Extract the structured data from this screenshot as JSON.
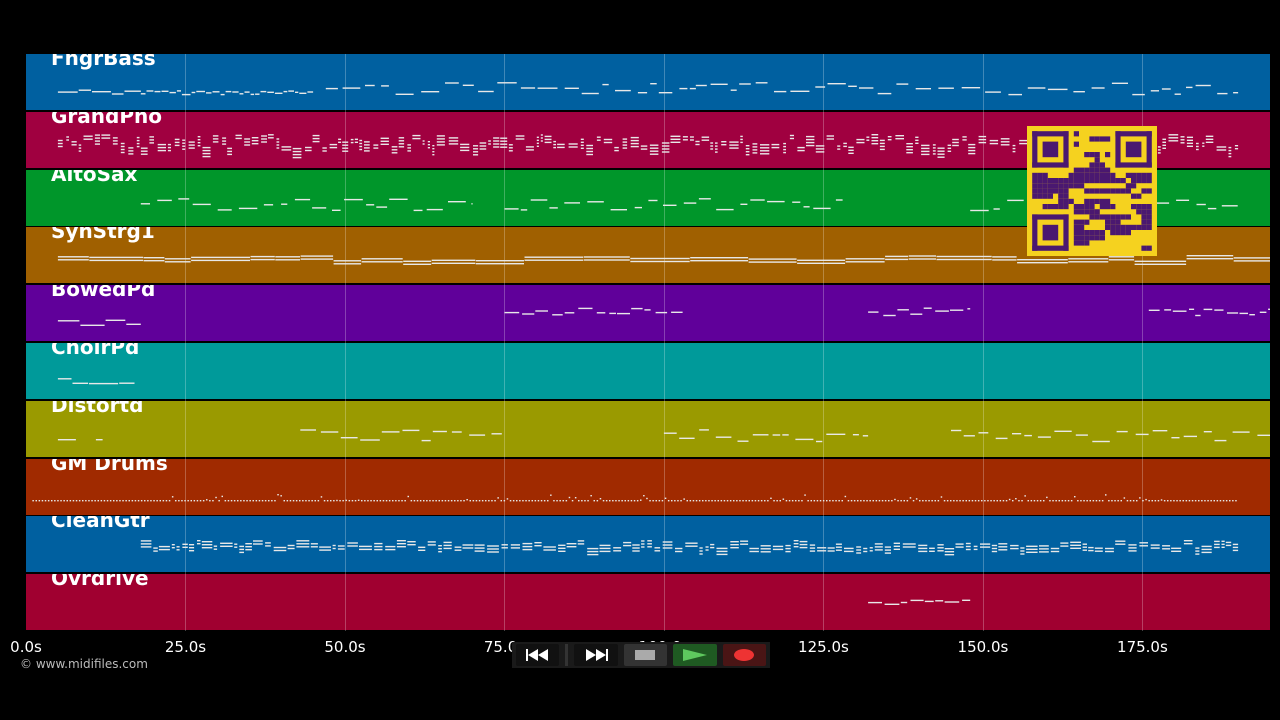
{
  "tracks": [
    {
      "name": "FngrBass",
      "color": "#0060a0"
    },
    {
      "name": "GrandPno",
      "color": "#a00040"
    },
    {
      "name": "AltoSax",
      "color": "#00962a"
    },
    {
      "name": "SynStrg1",
      "color": "#a06000"
    },
    {
      "name": "BowedPd",
      "color": "#60009a"
    },
    {
      "name": "ChoirPd",
      "color": "#009a9a"
    },
    {
      "name": "Distortd",
      "color": "#9a9a00"
    },
    {
      "name": "GM Drums",
      "color": "#a02a00"
    },
    {
      "name": "CleanGtr",
      "color": "#0060a0"
    },
    {
      "name": "Ovrdrive",
      "color": "#a00030"
    }
  ],
  "time_axis": {
    "ticks": [
      "0.0s",
      "25.0s",
      "50.0s",
      "75.0s",
      "100.0s",
      "125.0s",
      "150.0s",
      "175.0s"
    ],
    "max_seconds": 195
  },
  "copyright": "© www.midifiles.com",
  "transport": {
    "rewind_icon": "rewind-icon",
    "fast_forward_icon": "fast-forward-icon",
    "stop_icon": "stop-icon",
    "play_icon": "play-icon",
    "record_icon": "record-icon"
  },
  "qr_icon": "qr-code-icon",
  "colors": {
    "background": "#000000",
    "note": "#e8e8e8",
    "qr_bg": "#f5d21f",
    "qr_fg": "#4a1870"
  }
}
